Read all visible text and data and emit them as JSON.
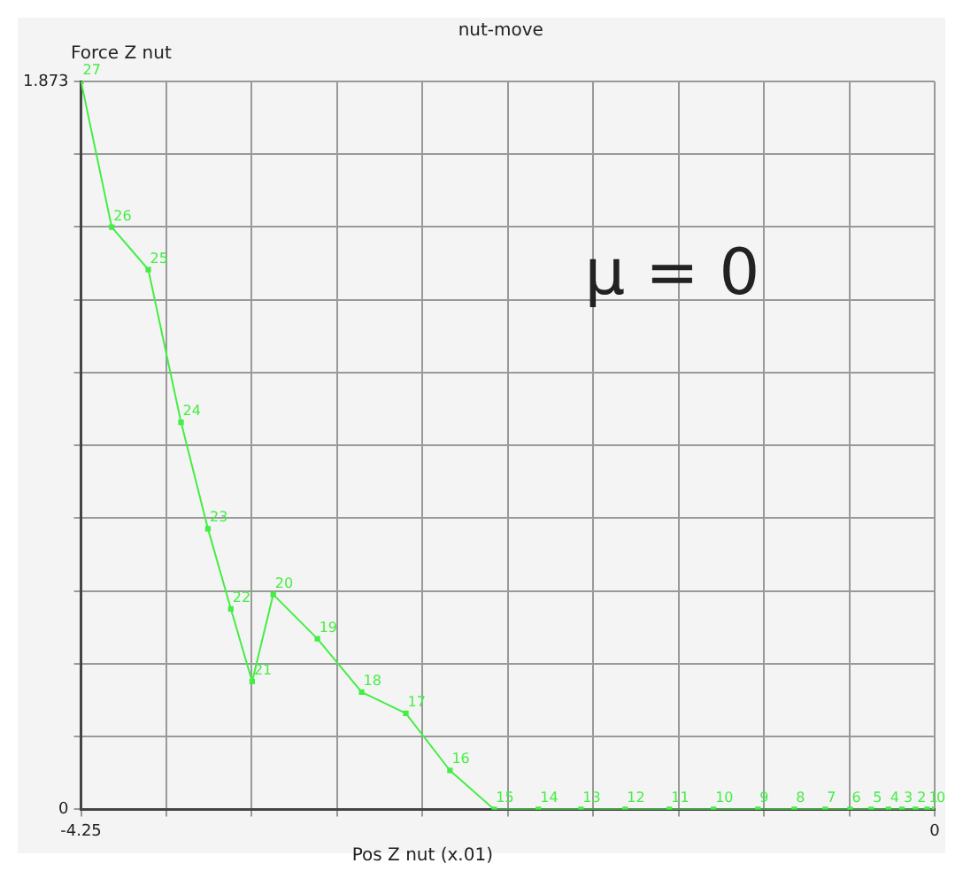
{
  "chart_data": {
    "type": "line",
    "title": "nut-move",
    "xlabel": "Pos Z nut (x.01)",
    "ylabel": "Force Z nut",
    "annotations": [
      "μ = 0",
      {
        "text": "27",
        "x": -4.25,
        "y": 1.873
      },
      {
        "text": "26",
        "x": -4.097,
        "y": 1.498
      },
      {
        "text": "25",
        "x": -3.915,
        "y": 1.389
      },
      {
        "text": "24",
        "x": -3.752,
        "y": 0.996
      },
      {
        "text": "23",
        "x": -3.618,
        "y": 0.722
      },
      {
        "text": "22",
        "x": -3.504,
        "y": 0.516
      },
      {
        "text": "21",
        "x": -3.398,
        "y": 0.329
      },
      {
        "text": "20",
        "x": -3.293,
        "y": 0.553
      },
      {
        "text": "19",
        "x": -3.073,
        "y": 0.439
      },
      {
        "text": "18",
        "x": -2.853,
        "y": 0.302
      },
      {
        "text": "17",
        "x": -2.633,
        "y": 0.247
      },
      {
        "text": "16",
        "x": -2.413,
        "y": 0.1
      },
      {
        "text": "15",
        "x": -2.193,
        "y": 0
      },
      {
        "text": "14",
        "x": -1.973,
        "y": 0
      },
      {
        "text": "13",
        "x": -1.761,
        "y": 0
      },
      {
        "text": "12",
        "x": -1.541,
        "y": 0
      },
      {
        "text": "11",
        "x": -1.321,
        "y": 0
      },
      {
        "text": "10",
        "x": -1.101,
        "y": 0
      },
      {
        "text": "9",
        "x": -0.88,
        "y": 0
      },
      {
        "text": "8",
        "x": -0.699,
        "y": 0
      },
      {
        "text": "7",
        "x": -0.545,
        "y": 0
      },
      {
        "text": "6",
        "x": -0.421,
        "y": 0
      },
      {
        "text": "5",
        "x": -0.316,
        "y": 0
      },
      {
        "text": "4",
        "x": -0.23,
        "y": 0
      },
      {
        "text": "3",
        "x": -0.163,
        "y": 0
      },
      {
        "text": "2",
        "x": -0.096,
        "y": 0
      },
      {
        "text": "1",
        "x": -0.038,
        "y": 0
      },
      {
        "text": "0",
        "x": 0,
        "y": 0
      }
    ],
    "x": [
      -4.25,
      -4.097,
      -3.915,
      -3.752,
      -3.618,
      -3.504,
      -3.398,
      -3.293,
      -3.073,
      -2.853,
      -2.633,
      -2.413,
      -2.193,
      -1.973,
      -1.761,
      -1.541,
      -1.321,
      -1.101,
      -0.88,
      -0.699,
      -0.545,
      -0.421,
      -0.316,
      -0.23,
      -0.163,
      -0.096,
      -0.038,
      0
    ],
    "series": [
      {
        "color": "#44ee44",
        "values": [
          1.873,
          1.498,
          1.389,
          0.996,
          0.722,
          0.516,
          0.329,
          0.553,
          0.439,
          0.302,
          0.247,
          0.1,
          0,
          0,
          0,
          0,
          0,
          0,
          0,
          0,
          0,
          0,
          0,
          0,
          0,
          0,
          0,
          0
        ]
      }
    ],
    "xlim": [
      -4.25,
      0
    ],
    "ylim": [
      0,
      1.873
    ],
    "xticks": [
      -4.25,
      {
        "value": -3.825,
        "label": null
      },
      {
        "value": -3.4,
        "label": null
      },
      {
        "value": -2.975,
        "label": null
      },
      {
        "value": -2.55,
        "label": null
      },
      {
        "value": -2.125,
        "label": null
      },
      {
        "value": -1.7,
        "label": null
      },
      {
        "value": -1.275,
        "label": null
      },
      {
        "value": -0.85,
        "label": null
      },
      {
        "value": -0.425,
        "label": null
      },
      0
    ],
    "yticks": [
      0,
      {
        "value": 0.1873,
        "label": null
      },
      {
        "value": 0.3746,
        "label": null
      },
      {
        "value": 0.5619,
        "label": null
      },
      {
        "value": 0.7492,
        "label": null
      },
      {
        "value": 0.9365,
        "label": null
      },
      {
        "value": 1.1238,
        "label": null
      },
      {
        "value": 1.3111,
        "label": null
      },
      {
        "value": 1.4984,
        "label": null
      },
      {
        "value": 1.6857,
        "label": null
      },
      1.873
    ],
    "grid": true,
    "marker": "square",
    "line_style": "solid",
    "legend": false
  }
}
